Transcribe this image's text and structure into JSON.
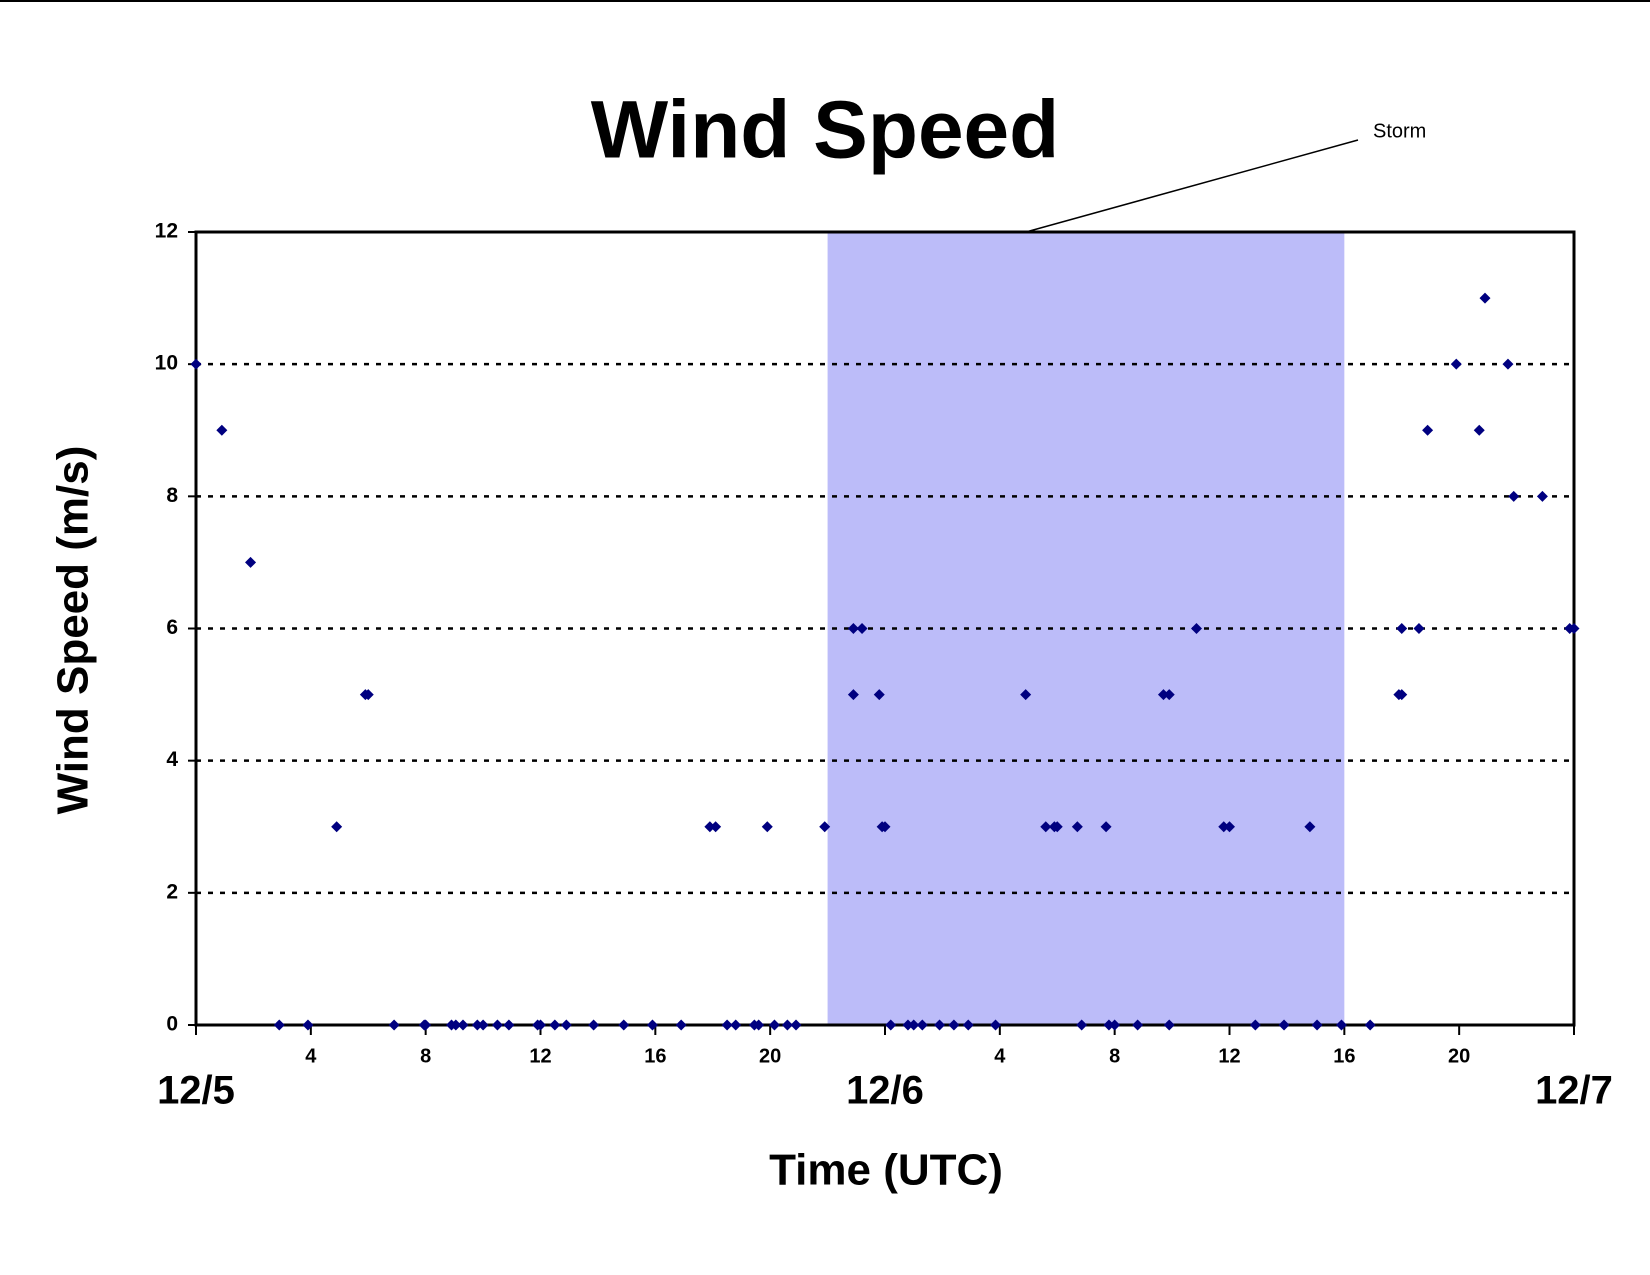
{
  "chart_data": {
    "type": "scatter",
    "title": "Wind Speed",
    "x_label": "Time (UTC)",
    "y_label": "Wind Speed (m/s)",
    "xlim": [
      0,
      48
    ],
    "ylim": [
      0,
      12
    ],
    "xticks": [
      {
        "value": 0,
        "label": "12/5"
      },
      4,
      8,
      12,
      16,
      20,
      {
        "value": 24,
        "label": "12/6"
      },
      {
        "value": 28,
        "label": "4"
      },
      {
        "value": 32,
        "label": "8"
      },
      {
        "value": 36,
        "label": "12"
      },
      {
        "value": 40,
        "label": "16"
      },
      {
        "value": 44,
        "label": "20"
      },
      {
        "value": 48,
        "label": "12/7"
      }
    ],
    "yticks": [
      0,
      2,
      4,
      6,
      8,
      10,
      12
    ],
    "grid": true,
    "shaded_regions": [
      {
        "x": [
          22,
          40
        ],
        "color": "#bcbcf9",
        "label": "Storm"
      }
    ],
    "series": [
      {
        "color": "#000080",
        "x": [
          0,
          0.9,
          1.9,
          2.9,
          3.9,
          4.9,
          5.9,
          6.0,
          6.9,
          7.95,
          8.0,
          8.9,
          9.05,
          9.3,
          9.8,
          10.0,
          10.5,
          10.9,
          11.9,
          12.0,
          12.5,
          12.9,
          13.85,
          14.9,
          15.9,
          16.9,
          17.9,
          18.1,
          18.5,
          18.8,
          19.45,
          19.6,
          19.9,
          20.15,
          20.6,
          20.9,
          21.9,
          22.9,
          23.2,
          22.9,
          23.8,
          23.9,
          24.0,
          24.2,
          24.8,
          25.0,
          25.3,
          25.9,
          26.4,
          26.9,
          27.85,
          28.9,
          29.6,
          29.9,
          30.0,
          30.7,
          30.85,
          31.7,
          31.8,
          32.0,
          32.8,
          33.7,
          33.9,
          33.9,
          34.85,
          35.8,
          36.0,
          36.9,
          37.9,
          38.8,
          39.05,
          39.9,
          40.9,
          41.9,
          42.0,
          42.0,
          42.6,
          42.9,
          43.9,
          44.7,
          44.9,
          45.7,
          45.9,
          46.9,
          47.85,
          48.0
        ],
        "values": [
          10,
          9,
          7,
          0,
          0,
          3,
          5,
          5,
          0,
          0,
          0,
          0,
          0,
          0,
          0,
          0,
          0,
          0,
          0,
          0,
          0,
          0,
          0,
          0,
          0,
          0,
          3,
          3,
          0,
          0,
          0,
          0,
          3,
          0,
          0,
          0,
          3,
          6,
          6,
          5,
          5,
          3,
          3,
          0,
          0,
          0,
          0,
          0,
          0,
          0,
          0,
          5,
          3,
          3,
          3,
          3,
          0,
          3,
          0,
          0,
          0,
          5,
          5,
          0,
          6,
          3,
          3,
          0,
          0,
          3,
          0,
          0,
          0,
          5,
          5,
          6,
          6,
          9,
          10,
          9,
          11,
          10,
          8,
          8,
          6,
          6
        ]
      }
    ]
  }
}
